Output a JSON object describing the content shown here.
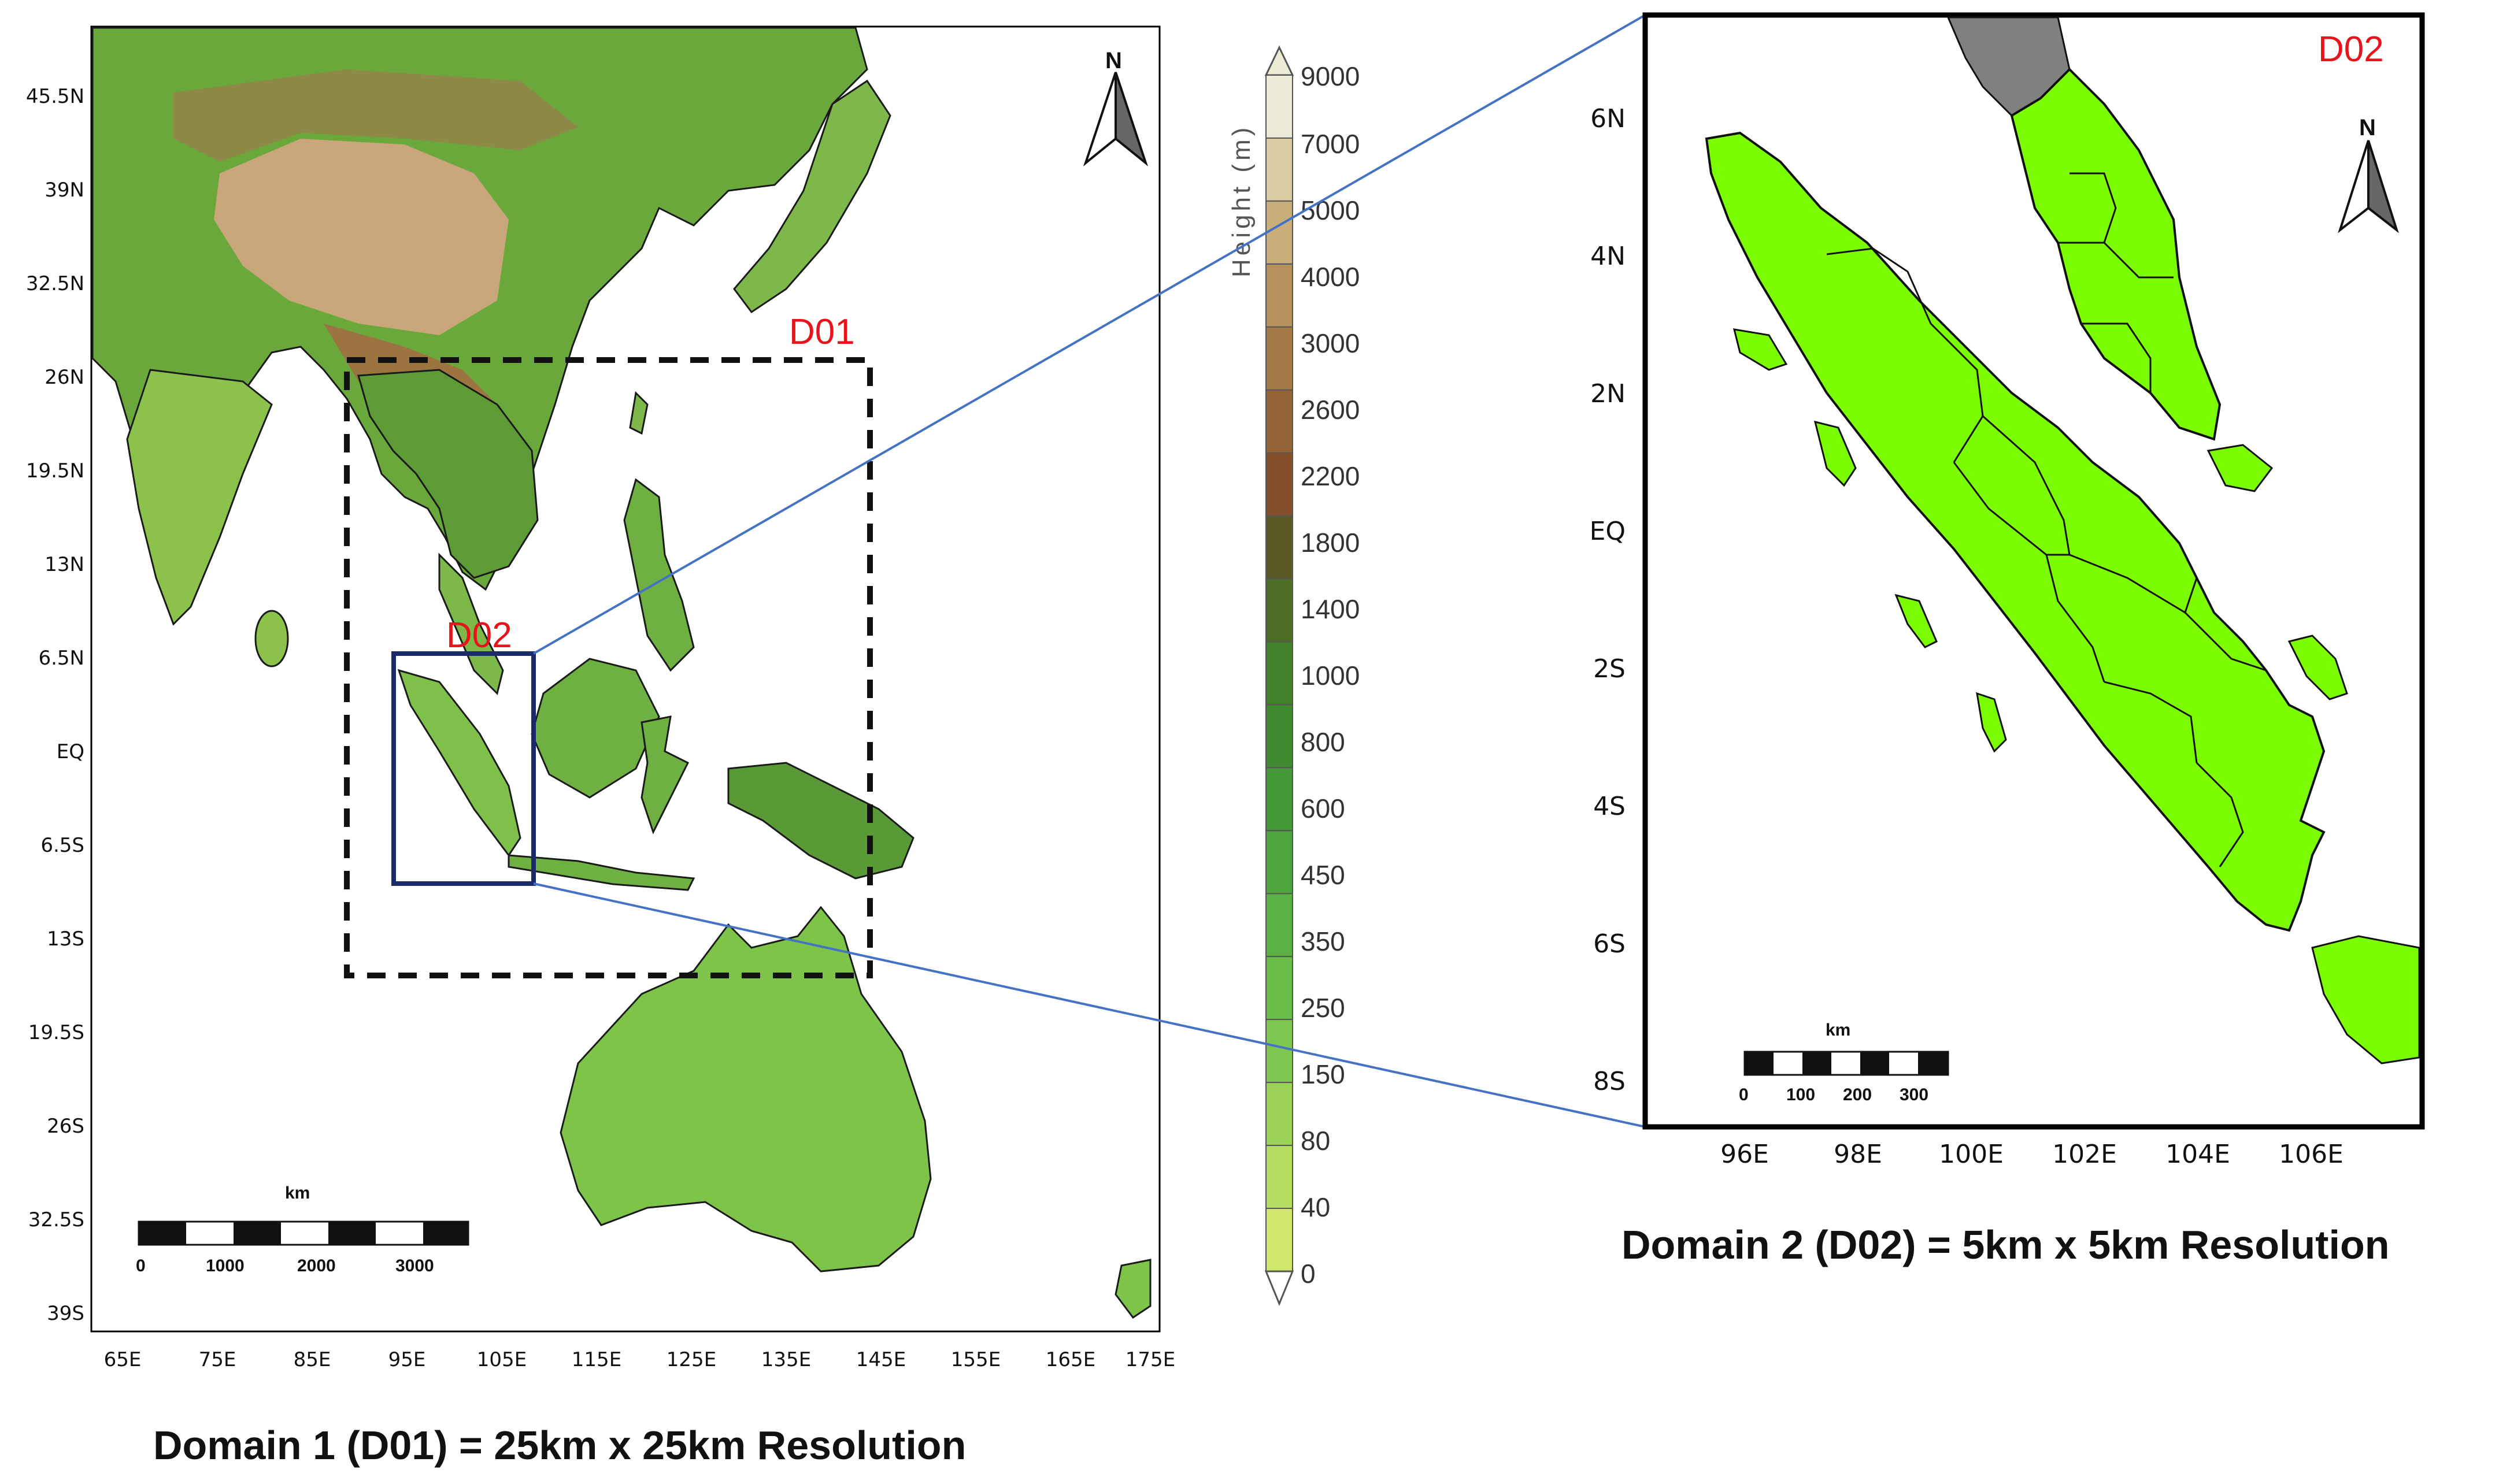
{
  "map1": {
    "lat_ticks": [
      "45.5N",
      "39N",
      "32.5N",
      "26N",
      "19.5N",
      "13N",
      "6.5N",
      "EQ",
      "6.5S",
      "13S",
      "19.5S",
      "26S",
      "32.5S",
      "39S"
    ],
    "lon_ticks": [
      "65E",
      "75E",
      "85E",
      "95E",
      "105E",
      "115E",
      "125E",
      "135E",
      "145E",
      "155E",
      "165E",
      "175E"
    ],
    "d01_label": "D01",
    "d02_label": "D02",
    "north": "N",
    "scale": {
      "unit": "km",
      "labels": [
        "0",
        "1000",
        "2000",
        "3000"
      ]
    },
    "caption": "Domain 1 (D01) = 25km x 25km Resolution"
  },
  "colorbar": {
    "title": "Height (m)",
    "levels": [
      "9000",
      "7000",
      "5000",
      "4000",
      "3000",
      "2600",
      "2200",
      "1800",
      "1400",
      "1000",
      "800",
      "600",
      "450",
      "350",
      "250",
      "150",
      "80",
      "40",
      "0"
    ],
    "colors": [
      "#ecebd6",
      "#d9cba3",
      "#c9ae7c",
      "#b8925e",
      "#a67a47",
      "#956436",
      "#84502a",
      "#5c5a23",
      "#4e6e25",
      "#427f2b",
      "#3d8a30",
      "#449837",
      "#4ea43d",
      "#5bb144",
      "#6bbd4a",
      "#7fc84f",
      "#9ad356",
      "#b5de60",
      "#cfe86c"
    ]
  },
  "map2": {
    "lat_ticks": [
      "6N",
      "4N",
      "2N",
      "EQ",
      "2S",
      "4S",
      "6S",
      "8S"
    ],
    "lon_ticks": [
      "96E",
      "98E",
      "100E",
      "102E",
      "104E",
      "106E"
    ],
    "d02_label": "D02",
    "north": "N",
    "scale": {
      "unit": "km",
      "labels": [
        "0",
        "100",
        "200",
        "300"
      ]
    },
    "caption": "Domain 2 (D02) = 5km x 5km Resolution"
  },
  "colors": {
    "domain_label": "#e8141b",
    "d02_box": "#1b2a6b",
    "zoom_lines": "#4472c4",
    "land_d02": "#7cfc00",
    "neighbour_land": "#808080"
  }
}
